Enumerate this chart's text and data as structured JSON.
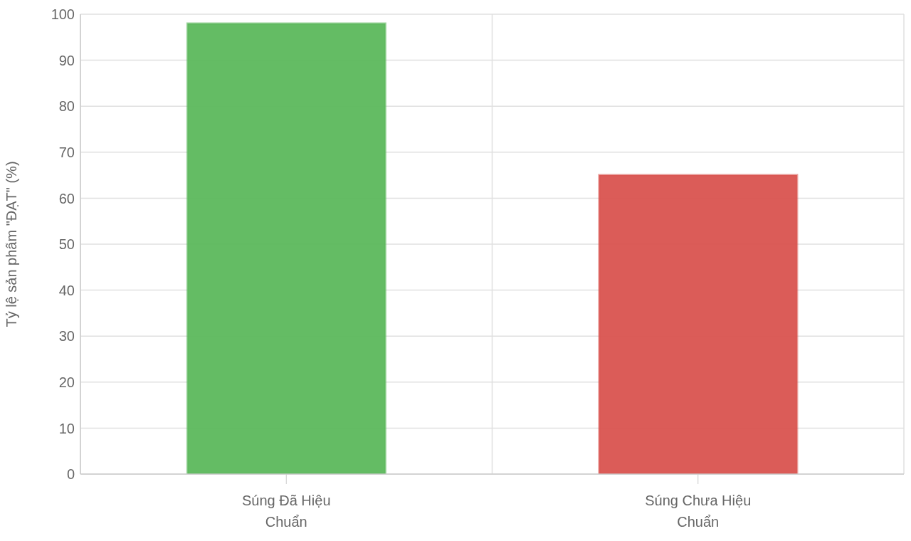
{
  "chart_data": {
    "type": "bar",
    "ylabel": "Tỷ lệ sản phẩm \"ĐẠT\" (%)",
    "categories": [
      "Súng Đã Hiệu Chuẩn",
      "Súng Chưa Hiệu Chuẩn"
    ],
    "values": [
      98,
      65
    ],
    "colors": [
      "#5cb85c",
      "#d9534f"
    ],
    "ylim": [
      0,
      100
    ],
    "yticks": [
      0,
      10,
      20,
      30,
      40,
      50,
      60,
      70,
      80,
      90,
      100
    ],
    "grid": true
  }
}
